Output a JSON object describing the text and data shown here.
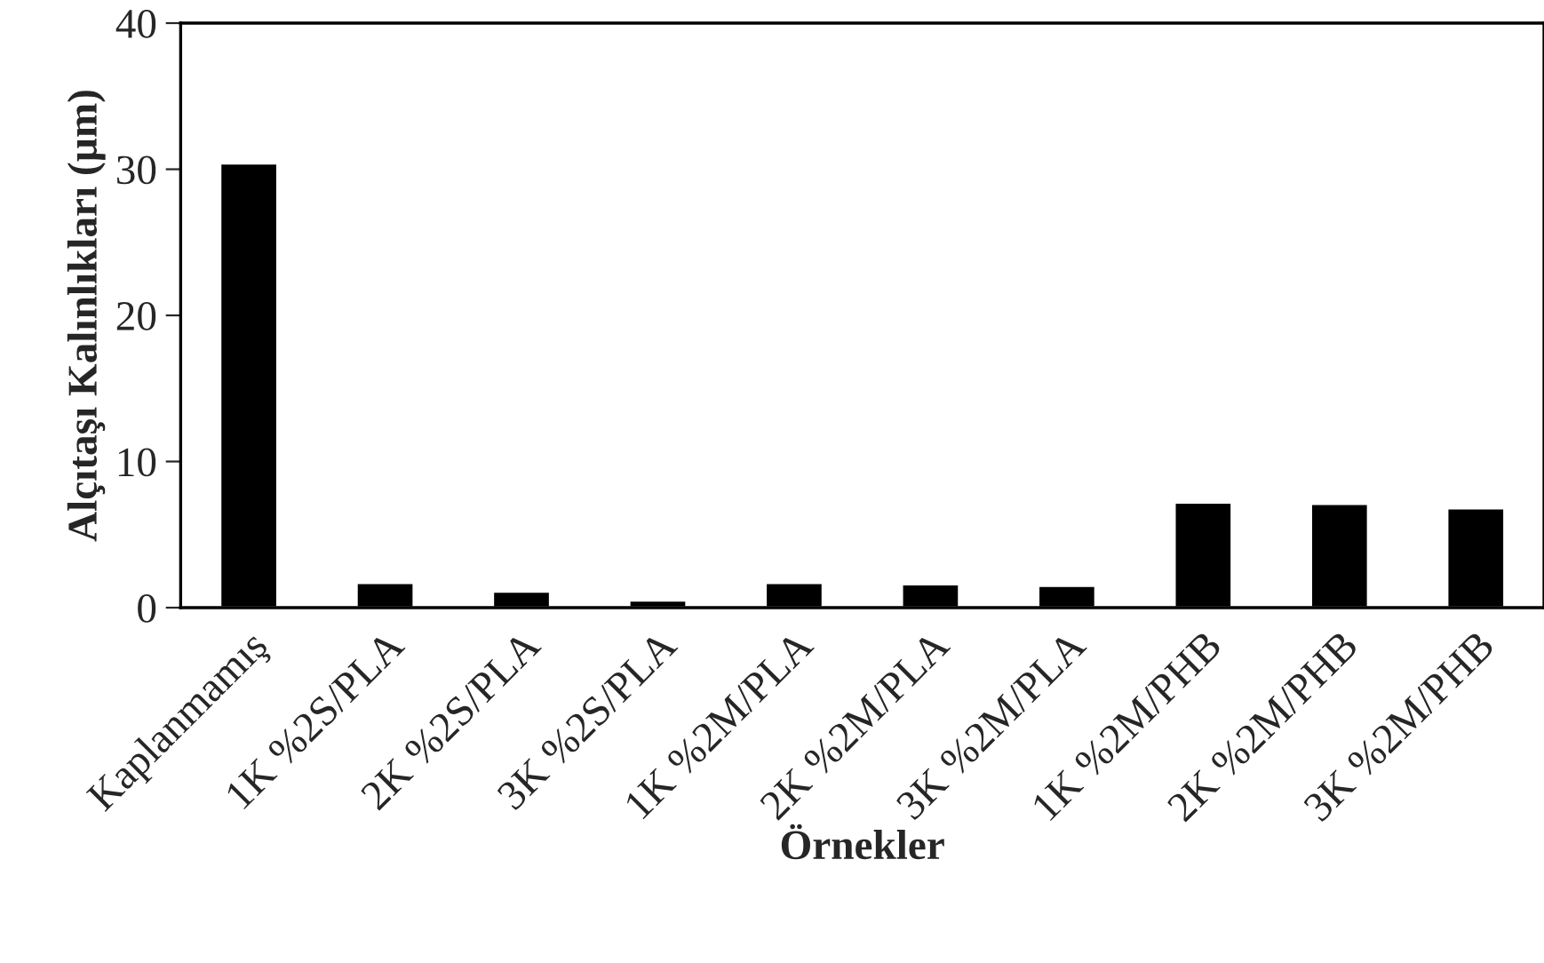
{
  "chart_data": {
    "type": "bar",
    "xlabel": "Örnekler",
    "ylabel": "Alçıtaşı Kalınlıkları (µm)",
    "categories": [
      "Kaplanmamış",
      "1K %2S/PLA",
      "2K %2S/PLA",
      "3K %2S/PLA",
      "1K %2M/PLA",
      "2K %2M/PLA",
      "3K %2M/PLA",
      "1K %2M/PHB",
      "2K %2M/PHB",
      "3K %2M/PHB"
    ],
    "values": [
      30.4,
      1.7,
      1.1,
      0.5,
      1.7,
      1.6,
      1.5,
      7.2,
      7.1,
      6.8
    ],
    "color": "#000000",
    "ylim": [
      0,
      40
    ],
    "yticks": [
      0,
      10,
      20,
      30,
      40
    ],
    "grid": false
  }
}
